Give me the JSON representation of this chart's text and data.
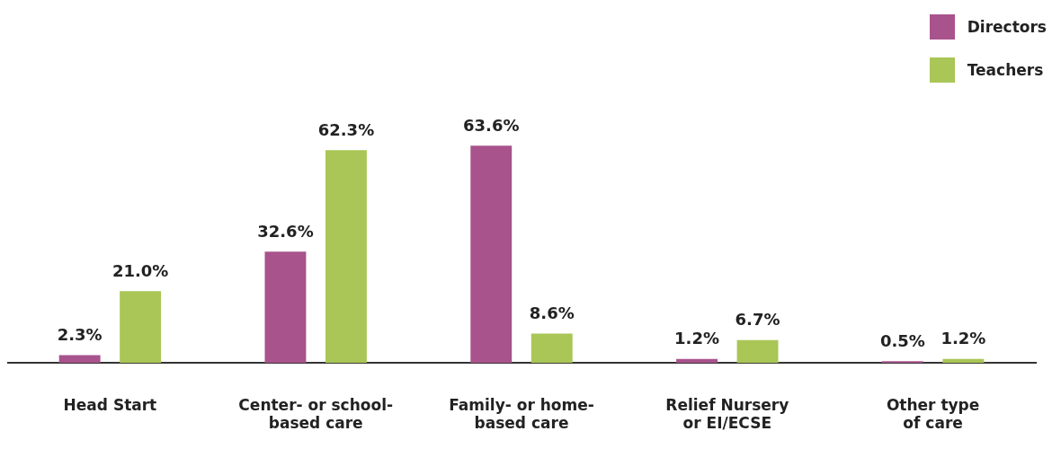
{
  "chart_data": {
    "type": "bar",
    "categories": [
      "Head Start",
      "Center- or school-\nbased care",
      "Family- or home-\nbased care",
      "Relief Nursery\nor EI/ECSE",
      "Other type\nof care"
    ],
    "series": [
      {
        "name": "Directors",
        "color": "#a8538c",
        "values": [
          2.3,
          32.6,
          63.6,
          1.2,
          0.5
        ],
        "value_labels": [
          "2.3%",
          "32.6%",
          "63.6%",
          "1.2%",
          "0.5%"
        ]
      },
      {
        "name": "Teachers",
        "color": "#a9c656",
        "values": [
          21.0,
          62.3,
          8.6,
          6.7,
          1.2
        ],
        "value_labels": [
          "21.0%",
          "62.3%",
          "8.6%",
          "6.7%",
          "1.2%"
        ]
      }
    ],
    "legend": "top right",
    "grid": false
  }
}
